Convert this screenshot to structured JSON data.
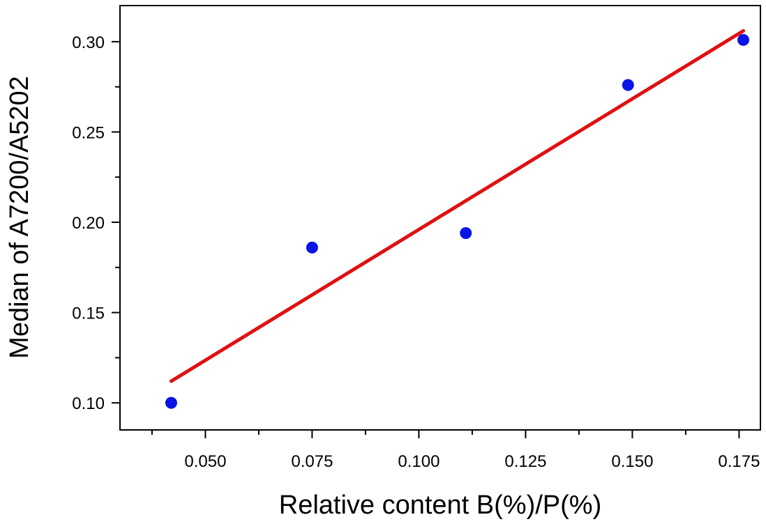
{
  "chart_data": {
    "type": "scatter",
    "xlabel": "Relative content B(%)/P(%)",
    "ylabel": "Median of A7200/A5202",
    "xlim": [
      0.03,
      0.18
    ],
    "ylim": [
      0.085,
      0.32
    ],
    "x_ticks": [
      "0.050",
      "0.075",
      "0.100",
      "0.125",
      "0.150",
      "0.175"
    ],
    "y_ticks": [
      "0.10",
      "0.15",
      "0.20",
      "0.25",
      "0.30"
    ],
    "grid": false,
    "legend": "none",
    "series": [
      {
        "type": "scatter",
        "color": "#0a14e6",
        "x": [
          0.042,
          0.075,
          0.111,
          0.149,
          0.176
        ],
        "y": [
          0.1,
          0.186,
          0.194,
          0.276,
          0.301
        ]
      },
      {
        "type": "fit-line",
        "color": "#e01010",
        "x": [
          0.042,
          0.176
        ],
        "y": [
          0.112,
          0.306
        ]
      }
    ]
  }
}
